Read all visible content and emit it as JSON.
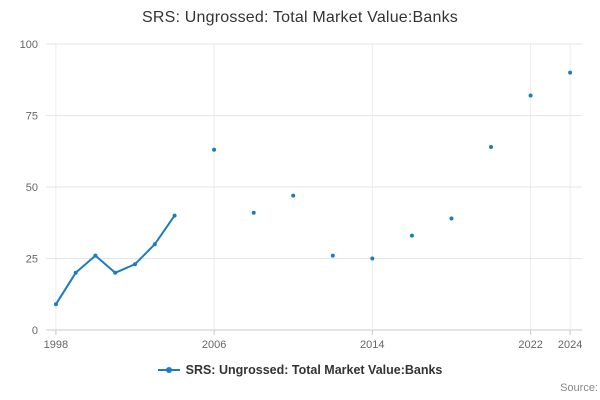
{
  "title": "SRS: Ungrossed: Total Market Value:Banks",
  "legend": {
    "label": "SRS: Ungrossed: Total Market Value:Banks"
  },
  "source_label": "Source:",
  "colors": {
    "series": "#1d7cbf",
    "grid": "#e6e6e6",
    "grid_vertical": "#ededed",
    "axis_line": "#c8c8c8",
    "tick_text": "#666666",
    "title_text": "#333333",
    "source_text": "#888888"
  },
  "chart_data": {
    "type": "line",
    "title": "SRS: Ungrossed: Total Market Value:Banks",
    "xlabel": "",
    "ylabel": "",
    "xlim": [
      1997.5,
      2024.6
    ],
    "ylim": [
      0,
      100
    ],
    "xticks": [
      1998,
      2006,
      2014,
      2022,
      2024
    ],
    "yticks": [
      0,
      25,
      50,
      75,
      100
    ],
    "grid": true,
    "legend_position": "bottom",
    "series_name": "SRS: Ungrossed: Total Market Value:Banks",
    "x": [
      1998,
      1999,
      2000,
      2001,
      2002,
      2003,
      2004,
      2005,
      2006,
      2007,
      2008,
      2009,
      2010,
      2011,
      2012,
      2013,
      2014,
      2015,
      2016,
      2017,
      2018,
      2019,
      2020,
      2021,
      2022,
      2023,
      2024
    ],
    "y": [
      9,
      20,
      26,
      20,
      23,
      30,
      40,
      null,
      63,
      null,
      41,
      null,
      47,
      null,
      26,
      null,
      25,
      null,
      33,
      null,
      39,
      null,
      64,
      null,
      82,
      null,
      90
    ]
  }
}
